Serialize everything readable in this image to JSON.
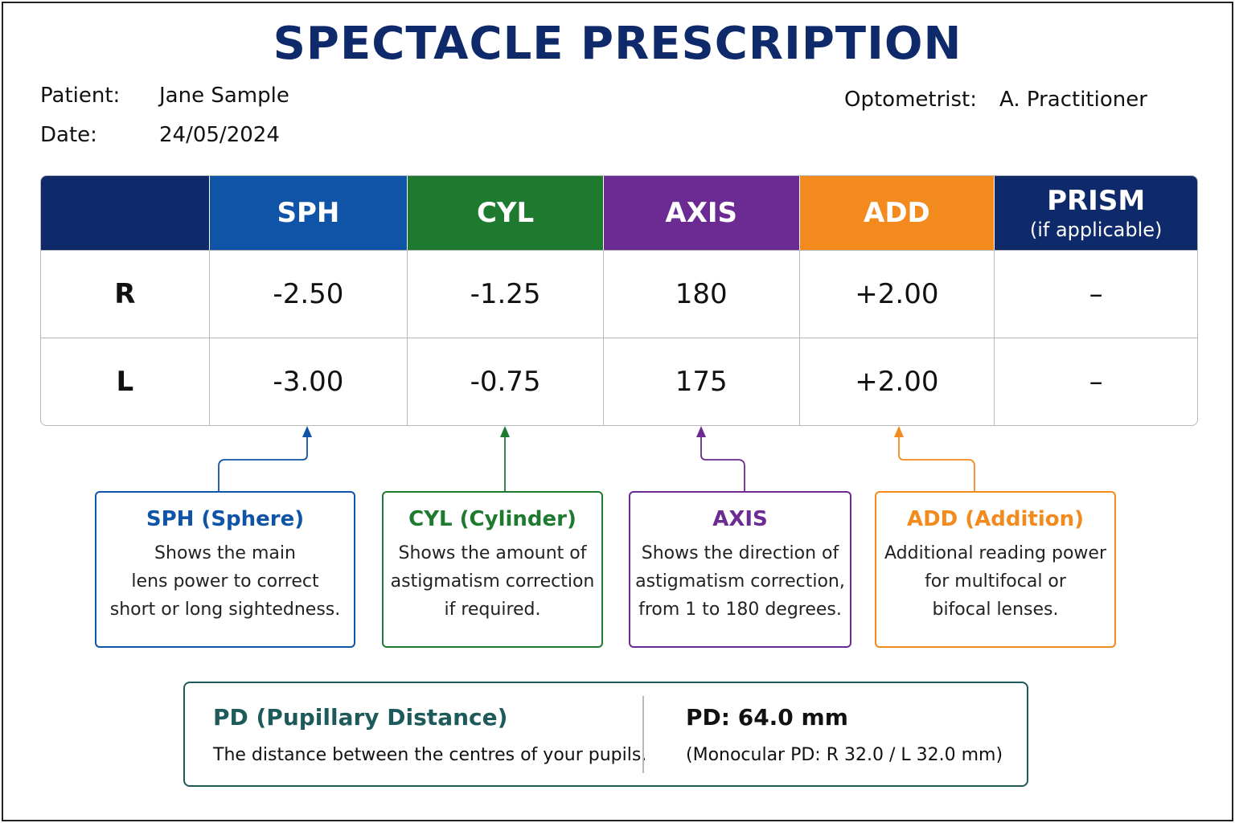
{
  "title": "SPECTACLE PRESCRIPTION",
  "patient": {
    "label": "Patient:",
    "value": "Jane Sample"
  },
  "date": {
    "label": "Date:",
    "value": "24/05/2024"
  },
  "optometrist": {
    "label": "Optometrist:",
    "value": "A. Practitioner"
  },
  "table": {
    "headers": {
      "sph": "SPH",
      "cyl": "CYL",
      "axis": "AXIS",
      "add": "ADD",
      "prism": "PRISM",
      "prism_sub": "(if applicable)"
    },
    "rows": [
      {
        "eye": "R",
        "sph": "-2.50",
        "cyl": "-1.25",
        "axis": "180",
        "add": "+2.00",
        "prism": "–"
      },
      {
        "eye": "L",
        "sph": "-3.00",
        "cyl": "-0.75",
        "axis": "175",
        "add": "+2.00",
        "prism": "–"
      }
    ]
  },
  "explanations": {
    "sph": {
      "heading": "SPH (Sphere)",
      "lines": [
        "Shows the main",
        "lens power to correct",
        "short or long sightedness."
      ]
    },
    "cyl": {
      "heading": "CYL (Cylinder)",
      "lines": [
        "Shows the amount of",
        "astigmatism correction",
        "if required."
      ]
    },
    "axis": {
      "heading": "AXIS",
      "lines": [
        "Shows the direction of",
        "astigmatism correction,",
        "from 1 to 180 degrees."
      ]
    },
    "add": {
      "heading": "ADD (Addition)",
      "lines": [
        "Additional reading power",
        "for multifocal or",
        "bifocal lenses."
      ]
    }
  },
  "pd": {
    "heading": "PD (Pupillary Distance)",
    "description": "The distance between the centres of your pupils.",
    "value": "PD: 64.0 mm",
    "monocular": "(Monocular PD: R 32.0 / L 32.0 mm)"
  },
  "colors": {
    "navy": "#0f2a6b",
    "sph": "#1054a8",
    "cyl": "#1e7a2f",
    "axis": "#6b2b93",
    "add": "#f28a1e",
    "pd": "#1e5a5a"
  }
}
